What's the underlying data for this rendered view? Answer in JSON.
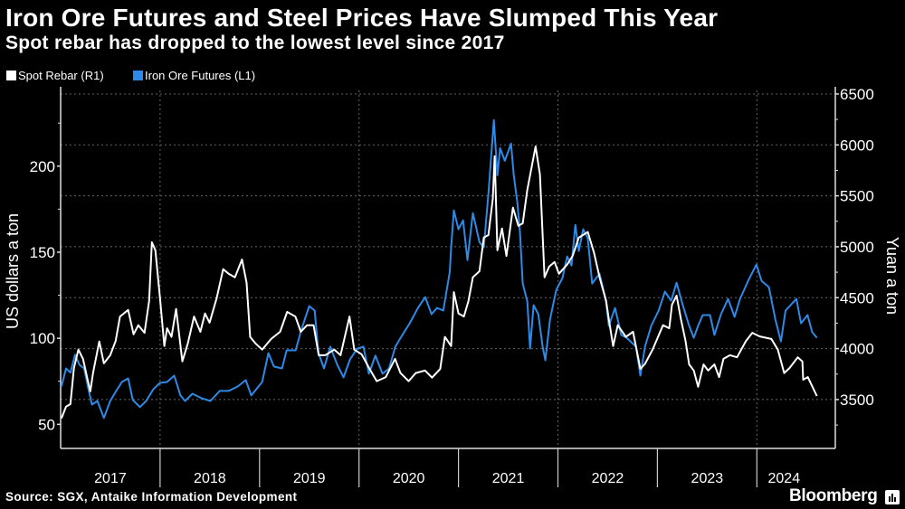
{
  "header": {
    "title": "Iron Ore Futures and Steel Prices Have Slumped This Year",
    "subtitle": "Spot rebar has dropped to the lowest level since 2017"
  },
  "legend": [
    {
      "label": "Spot Rebar (R1)",
      "color": "#ffffff"
    },
    {
      "label": "Iron Ore Futures (L1)",
      "color": "#2e8ae6"
    }
  ],
  "footer": {
    "source": "Source: SGX, Antaike Information Development",
    "brand": "Bloomberg",
    "brand_icon": "bloomberg-chart-icon"
  },
  "chart_data": {
    "type": "line",
    "title": "Iron Ore Futures and Steel Prices Have Slumped This Year",
    "subtitle": "Spot rebar has dropped to the lowest level since 2017",
    "x_tick_labels": [
      "2017",
      "2018",
      "2019",
      "2020",
      "2021",
      "2022",
      "2023",
      "2024"
    ],
    "left_axis": {
      "label": "US dollars a ton",
      "ticks": [
        50,
        100,
        150,
        200
      ],
      "range": [
        36,
        244
      ]
    },
    "right_axis": {
      "label": "Yuan a ton",
      "ticks": [
        3500,
        4000,
        4500,
        5000,
        5500,
        6000,
        6500
      ],
      "range": [
        3020,
        6535
      ]
    },
    "xlim": [
      "2017-01-01",
      "2024-10-20"
    ],
    "grid": true,
    "legend_position": "top-left",
    "series": [
      {
        "name": "Spot Rebar (R1)",
        "axis": "right",
        "color": "#ffffff",
        "points": [
          [
            "2017-01-04",
            3315
          ],
          [
            "2017-01-21",
            3430
          ],
          [
            "2017-02-06",
            3455
          ],
          [
            "2017-02-19",
            3810
          ],
          [
            "2017-03-07",
            3990
          ],
          [
            "2017-03-24",
            3900
          ],
          [
            "2017-04-10",
            3695
          ],
          [
            "2017-04-20",
            3580
          ],
          [
            "2017-04-30",
            3760
          ],
          [
            "2017-05-23",
            4070
          ],
          [
            "2017-06-09",
            3855
          ],
          [
            "2017-07-02",
            3935
          ],
          [
            "2017-07-22",
            4075
          ],
          [
            "2017-08-07",
            4315
          ],
          [
            "2017-09-06",
            4380
          ],
          [
            "2017-09-26",
            4140
          ],
          [
            "2017-10-13",
            4230
          ],
          [
            "2017-11-05",
            4155
          ],
          [
            "2017-11-22",
            4470
          ],
          [
            "2017-12-02",
            5045
          ],
          [
            "2017-12-15",
            4965
          ],
          [
            "2018-01-01",
            4495
          ],
          [
            "2018-01-17",
            4025
          ],
          [
            "2018-01-27",
            4200
          ],
          [
            "2018-02-12",
            4115
          ],
          [
            "2018-03-01",
            4390
          ],
          [
            "2018-03-24",
            3875
          ],
          [
            "2018-04-13",
            4050
          ],
          [
            "2018-05-06",
            4315
          ],
          [
            "2018-05-29",
            4165
          ],
          [
            "2018-06-15",
            4345
          ],
          [
            "2018-07-02",
            4255
          ],
          [
            "2018-07-28",
            4495
          ],
          [
            "2018-08-21",
            4780
          ],
          [
            "2018-09-10",
            4735
          ],
          [
            "2018-10-03",
            4700
          ],
          [
            "2018-10-29",
            4875
          ],
          [
            "2018-11-15",
            4645
          ],
          [
            "2018-11-28",
            4115
          ],
          [
            "2018-12-18",
            4050
          ],
          [
            "2019-01-11",
            3990
          ],
          [
            "2019-02-13",
            4095
          ],
          [
            "2019-03-18",
            4165
          ],
          [
            "2019-04-13",
            4360
          ],
          [
            "2019-05-13",
            4315
          ],
          [
            "2019-06-02",
            4165
          ],
          [
            "2019-06-25",
            4230
          ],
          [
            "2019-07-19",
            4230
          ],
          [
            "2019-08-07",
            3935
          ],
          [
            "2019-08-31",
            3935
          ],
          [
            "2019-10-03",
            3990
          ],
          [
            "2019-10-26",
            3935
          ],
          [
            "2019-11-28",
            4315
          ],
          [
            "2019-12-15",
            3990
          ],
          [
            "2020-01-11",
            3945
          ],
          [
            "2020-02-13",
            3785
          ],
          [
            "2020-03-07",
            3680
          ],
          [
            "2020-04-09",
            3720
          ],
          [
            "2020-05-13",
            3900
          ],
          [
            "2020-06-02",
            3760
          ],
          [
            "2020-07-02",
            3680
          ],
          [
            "2020-07-28",
            3760
          ],
          [
            "2020-08-31",
            3785
          ],
          [
            "2020-09-26",
            3715
          ],
          [
            "2020-10-26",
            3800
          ],
          [
            "2020-11-12",
            4115
          ],
          [
            "2020-12-05",
            4025
          ],
          [
            "2020-12-15",
            4555
          ],
          [
            "2021-01-01",
            4345
          ],
          [
            "2021-01-21",
            4315
          ],
          [
            "2021-02-07",
            4470
          ],
          [
            "2021-02-23",
            4700
          ],
          [
            "2021-03-19",
            4760
          ],
          [
            "2021-04-04",
            5090
          ],
          [
            "2021-04-21",
            5115
          ],
          [
            "2021-05-07",
            5470
          ],
          [
            "2021-05-14",
            5890
          ],
          [
            "2021-05-24",
            4965
          ],
          [
            "2021-06-10",
            5180
          ],
          [
            "2021-06-26",
            4910
          ],
          [
            "2021-07-20",
            5385
          ],
          [
            "2021-08-09",
            5205
          ],
          [
            "2021-08-25",
            5230
          ],
          [
            "2021-09-11",
            5560
          ],
          [
            "2021-10-11",
            5985
          ],
          [
            "2021-10-27",
            5710
          ],
          [
            "2021-11-06",
            5115
          ],
          [
            "2021-11-13",
            4700
          ],
          [
            "2021-11-30",
            4805
          ],
          [
            "2021-12-20",
            4850
          ],
          [
            "2022-01-05",
            4735
          ],
          [
            "2022-02-04",
            4825
          ],
          [
            "2022-02-24",
            4910
          ],
          [
            "2022-03-19",
            5090
          ],
          [
            "2022-04-21",
            5145
          ],
          [
            "2022-05-14",
            4940
          ],
          [
            "2022-06-03",
            4700
          ],
          [
            "2022-06-27",
            4470
          ],
          [
            "2022-07-07",
            4290
          ],
          [
            "2022-07-23",
            4025
          ],
          [
            "2022-08-09",
            4230
          ],
          [
            "2022-09-08",
            4115
          ],
          [
            "2022-10-04",
            4165
          ],
          [
            "2022-10-31",
            3800
          ],
          [
            "2022-11-17",
            3850
          ],
          [
            "2022-12-15",
            3990
          ],
          [
            "2023-01-22",
            4230
          ],
          [
            "2023-02-14",
            4200
          ],
          [
            "2023-02-24",
            4430
          ],
          [
            "2023-03-13",
            4520
          ],
          [
            "2023-03-29",
            4290
          ],
          [
            "2023-04-15",
            4075
          ],
          [
            "2023-04-28",
            3845
          ],
          [
            "2023-05-15",
            3785
          ],
          [
            "2023-05-31",
            3625
          ],
          [
            "2023-06-20",
            3845
          ],
          [
            "2023-07-07",
            3785
          ],
          [
            "2023-07-30",
            3845
          ],
          [
            "2023-08-16",
            3720
          ],
          [
            "2023-09-01",
            3900
          ],
          [
            "2023-09-25",
            3935
          ],
          [
            "2023-10-21",
            3915
          ],
          [
            "2023-11-23",
            4075
          ],
          [
            "2023-12-16",
            4155
          ],
          [
            "2024-01-12",
            4120
          ],
          [
            "2024-02-24",
            4095
          ],
          [
            "2024-03-19",
            3990
          ],
          [
            "2024-04-11",
            3760
          ],
          [
            "2024-05-01",
            3810
          ],
          [
            "2024-05-31",
            3915
          ],
          [
            "2024-06-17",
            3875
          ],
          [
            "2024-06-20",
            3695
          ],
          [
            "2024-07-07",
            3720
          ],
          [
            "2024-08-09",
            3535
          ]
        ]
      },
      {
        "name": "Iron Ore Futures (L1)",
        "axis": "left",
        "color": "#2e8ae6",
        "points": [
          [
            "2017-01-04",
            72.0
          ],
          [
            "2017-01-21",
            82.5
          ],
          [
            "2017-02-06",
            80.0
          ],
          [
            "2017-02-23",
            90.4
          ],
          [
            "2017-03-11",
            84.6
          ],
          [
            "2017-03-28",
            82.5
          ],
          [
            "2017-04-13",
            70.5
          ],
          [
            "2017-04-26",
            61.5
          ],
          [
            "2017-05-16",
            63.6
          ],
          [
            "2017-06-09",
            53.7
          ],
          [
            "2017-07-02",
            63.6
          ],
          [
            "2017-07-22",
            68.9
          ],
          [
            "2017-08-14",
            74.6
          ],
          [
            "2017-09-06",
            76.7
          ],
          [
            "2017-09-23",
            64.2
          ],
          [
            "2017-10-19",
            60.0
          ],
          [
            "2017-11-11",
            63.6
          ],
          [
            "2017-12-08",
            70.5
          ],
          [
            "2018-01-01",
            74.1
          ],
          [
            "2018-01-27",
            74.6
          ],
          [
            "2018-02-22",
            78.3
          ],
          [
            "2018-03-17",
            66.8
          ],
          [
            "2018-04-03",
            63.6
          ],
          [
            "2018-04-30",
            67.8
          ],
          [
            "2018-06-02",
            65.2
          ],
          [
            "2018-07-05",
            63.6
          ],
          [
            "2018-08-08",
            69.4
          ],
          [
            "2018-09-10",
            69.4
          ],
          [
            "2018-10-13",
            72.0
          ],
          [
            "2018-11-12",
            75.7
          ],
          [
            "2018-12-02",
            66.8
          ],
          [
            "2019-01-11",
            74.6
          ],
          [
            "2019-02-03",
            91.4
          ],
          [
            "2019-02-23",
            83.6
          ],
          [
            "2019-03-25",
            82.5
          ],
          [
            "2019-04-11",
            93.0
          ],
          [
            "2019-05-14",
            93.0
          ],
          [
            "2019-06-03",
            104.5
          ],
          [
            "2019-07-03",
            118.7
          ],
          [
            "2019-07-23",
            116.1
          ],
          [
            "2019-08-06",
            91.4
          ],
          [
            "2019-08-26",
            82.5
          ],
          [
            "2019-09-18",
            95.1
          ],
          [
            "2019-10-14",
            84.6
          ],
          [
            "2019-11-06",
            77.3
          ],
          [
            "2019-11-30",
            87.8
          ],
          [
            "2019-12-26",
            94.0
          ],
          [
            "2020-01-18",
            95.1
          ],
          [
            "2020-02-07",
            79.4
          ],
          [
            "2020-03-02",
            89.9
          ],
          [
            "2020-03-28",
            79.4
          ],
          [
            "2020-04-21",
            82.5
          ],
          [
            "2020-05-14",
            95.1
          ],
          [
            "2020-06-09",
            101.9
          ],
          [
            "2020-07-06",
            108.7
          ],
          [
            "2020-08-05",
            117.6
          ],
          [
            "2020-09-01",
            123.9
          ],
          [
            "2020-09-24",
            114.0
          ],
          [
            "2020-10-14",
            117.6
          ],
          [
            "2020-11-06",
            116.1
          ],
          [
            "2020-11-30",
            138.6
          ],
          [
            "2020-12-05",
            152.8
          ],
          [
            "2020-12-15",
            174.3
          ],
          [
            "2021-01-01",
            163.3
          ],
          [
            "2021-01-18",
            168.5
          ],
          [
            "2021-02-03",
            145.4
          ],
          [
            "2021-02-23",
            172.7
          ],
          [
            "2021-03-19",
            155.9
          ],
          [
            "2021-04-04",
            152.8
          ],
          [
            "2021-04-21",
            184.2
          ],
          [
            "2021-05-11",
            226.7
          ],
          [
            "2021-05-24",
            194.7
          ],
          [
            "2021-06-03",
            210.5
          ],
          [
            "2021-06-20",
            203.1
          ],
          [
            "2021-07-13",
            213.1
          ],
          [
            "2021-07-23",
            194.7
          ],
          [
            "2021-08-05",
            179.0
          ],
          [
            "2021-08-15",
            161.2
          ],
          [
            "2021-08-25",
            131.8
          ],
          [
            "2021-09-11",
            121.3
          ],
          [
            "2021-09-21",
            94.0
          ],
          [
            "2021-10-04",
            119.2
          ],
          [
            "2021-10-21",
            114.0
          ],
          [
            "2021-11-06",
            95.1
          ],
          [
            "2021-11-16",
            87.2
          ],
          [
            "2021-12-03",
            110.8
          ],
          [
            "2021-12-26",
            128.1
          ],
          [
            "2022-01-18",
            135.0
          ],
          [
            "2022-02-04",
            147.5
          ],
          [
            "2022-02-20",
            142.3
          ],
          [
            "2022-03-06",
            165.9
          ],
          [
            "2022-03-19",
            150.7
          ],
          [
            "2022-04-04",
            163.3
          ],
          [
            "2022-04-21",
            158.0
          ],
          [
            "2022-05-07",
            131.8
          ],
          [
            "2022-06-03",
            137.6
          ],
          [
            "2022-06-27",
            121.3
          ],
          [
            "2022-07-07",
            107.2
          ],
          [
            "2022-07-30",
            117.6
          ],
          [
            "2022-08-22",
            101.9
          ],
          [
            "2022-09-11",
            100.3
          ],
          [
            "2022-10-15",
            95.1
          ],
          [
            "2022-10-31",
            78.3
          ],
          [
            "2022-11-17",
            95.1
          ],
          [
            "2022-12-10",
            107.2
          ],
          [
            "2023-01-06",
            116.1
          ],
          [
            "2023-01-29",
            127.1
          ],
          [
            "2023-02-21",
            121.8
          ],
          [
            "2023-03-13",
            132.3
          ],
          [
            "2023-04-05",
            119.2
          ],
          [
            "2023-04-28",
            107.2
          ],
          [
            "2023-05-15",
            100.3
          ],
          [
            "2023-05-31",
            107.2
          ],
          [
            "2023-06-17",
            113.5
          ],
          [
            "2023-07-14",
            113.5
          ],
          [
            "2023-07-30",
            101.9
          ],
          [
            "2023-08-23",
            114.0
          ],
          [
            "2023-09-18",
            122.9
          ],
          [
            "2023-10-12",
            112.4
          ],
          [
            "2023-11-01",
            122.9
          ],
          [
            "2023-12-01",
            133.4
          ],
          [
            "2023-12-31",
            142.8
          ],
          [
            "2024-01-19",
            133.4
          ],
          [
            "2024-02-15",
            129.7
          ],
          [
            "2024-03-10",
            110.8
          ],
          [
            "2024-03-30",
            98.2
          ],
          [
            "2024-04-16",
            116.1
          ],
          [
            "2024-05-26",
            122.9
          ],
          [
            "2024-06-12",
            108.7
          ],
          [
            "2024-07-06",
            113.5
          ],
          [
            "2024-07-23",
            103.5
          ],
          [
            "2024-08-09",
            100.3
          ]
        ]
      }
    ]
  }
}
